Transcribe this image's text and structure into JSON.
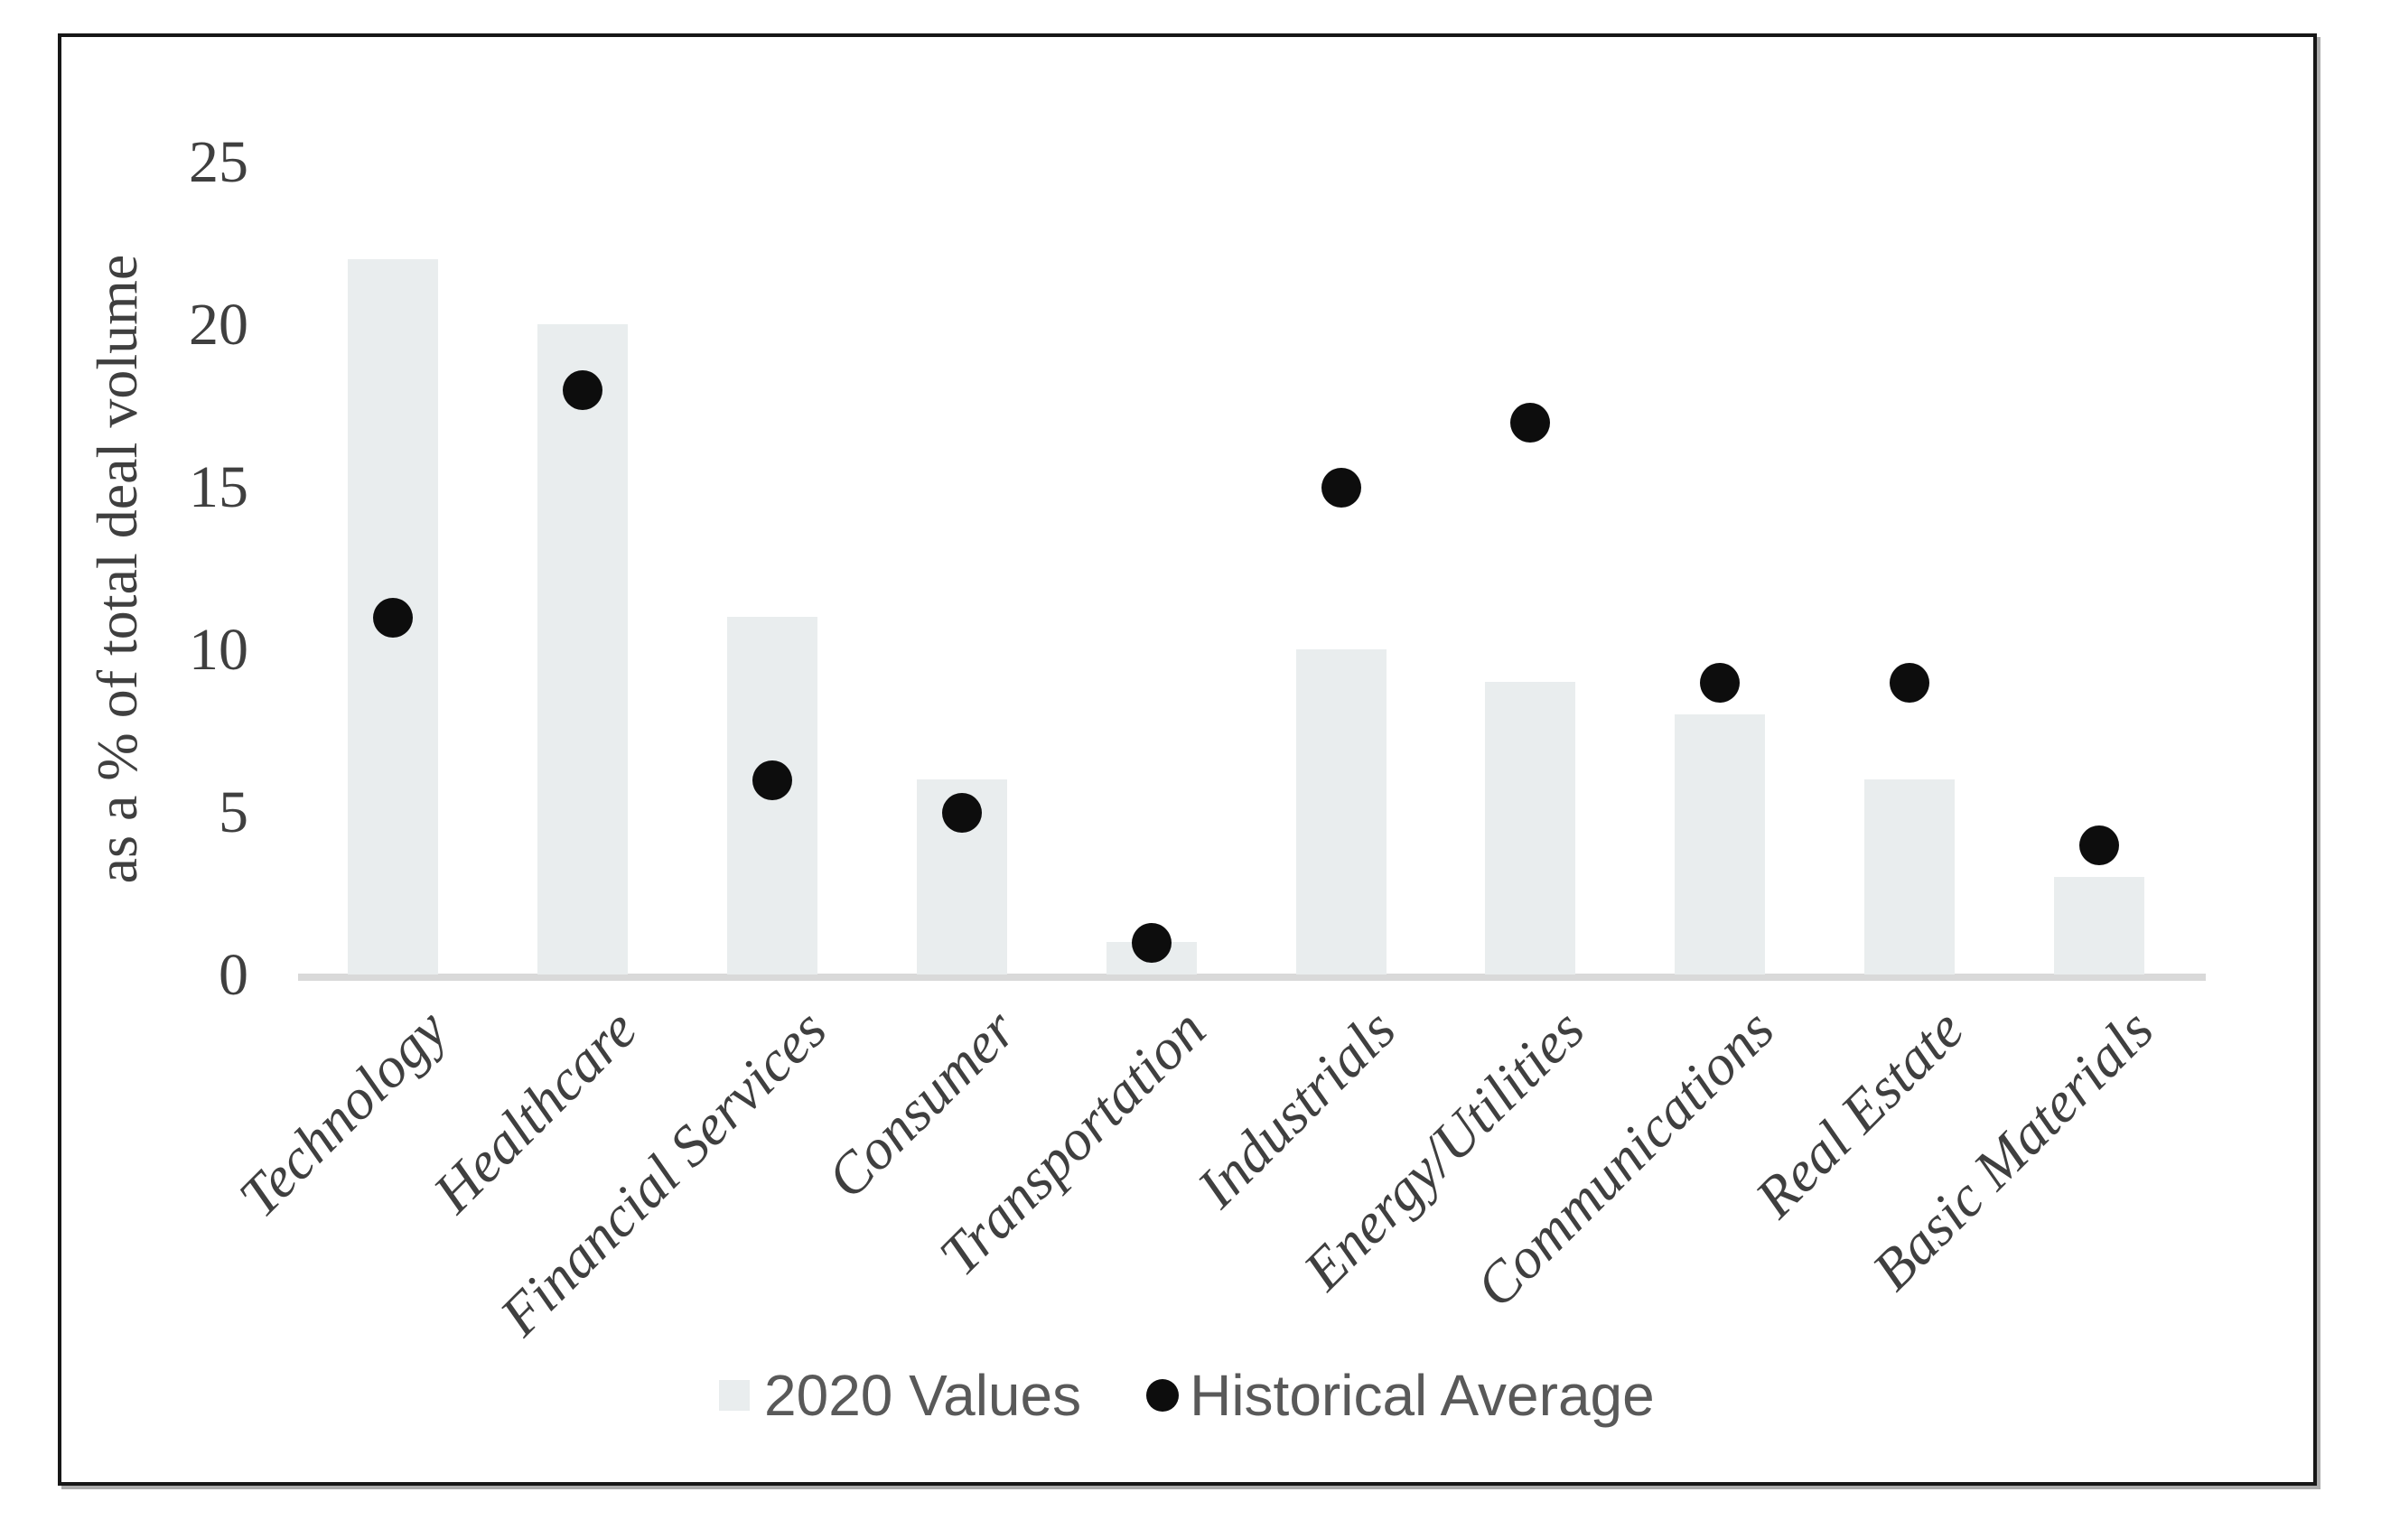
{
  "chart_data": {
    "type": "bar",
    "subtype": "column-with-scatter-overlay",
    "categories": [
      "Technology",
      "Healthcare",
      "Financial Services",
      "Consumer",
      "Transportation",
      "Industrials",
      "Energy/Utilities",
      "Communications",
      "Real Estate",
      "Basic Materials"
    ],
    "series": [
      {
        "name": "2020 Values",
        "type": "bar",
        "color": "#e9edee",
        "values": [
          22,
          20,
          11,
          6,
          1,
          10,
          9,
          8,
          6,
          3
        ]
      },
      {
        "name": "Historical Average",
        "type": "scatter",
        "color": "#0d0d0d",
        "values": [
          11,
          18,
          6,
          5,
          1,
          15,
          17,
          9,
          9,
          4
        ]
      }
    ],
    "title": "",
    "xlabel": "",
    "ylabel": "as a % of total deal volume",
    "ylim": [
      0,
      25
    ],
    "yticks": [
      0,
      5,
      10,
      15,
      20,
      25
    ],
    "grid": false,
    "legend_position": "bottom"
  },
  "legend": {
    "bar_label": "2020 Values",
    "dot_label": "Historical Average"
  },
  "colors": {
    "bar_fill": "#e9edee",
    "dot_fill": "#0d0d0d",
    "axis_line": "#d9d9d9",
    "tick_text": "#3f3f3f",
    "legend_text": "#595959",
    "frame_border": "#171717"
  }
}
